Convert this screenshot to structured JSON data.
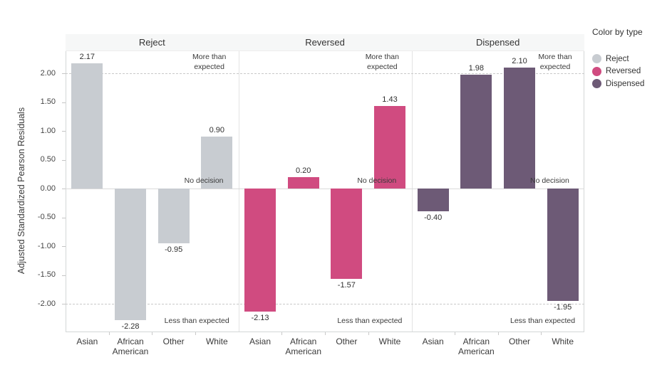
{
  "legend": {
    "title": "Color by type",
    "items": [
      {
        "label": "Reject",
        "color": "#c8ccd1"
      },
      {
        "label": "Reversed",
        "color": "#d04b80"
      },
      {
        "label": "Dispensed",
        "color": "#6d5a76"
      }
    ]
  },
  "chart_data": {
    "type": "bar",
    "title": "",
    "ylabel": "Adjusted Standardized Pearson Residuals",
    "xlabel": "",
    "categories": [
      "Asian",
      "African American",
      "Other",
      "White"
    ],
    "panels": [
      {
        "name": "Reject",
        "color": "#c8ccd1",
        "values": [
          2.17,
          -2.28,
          -0.95,
          0.9
        ]
      },
      {
        "name": "Reversed",
        "color": "#d04b80",
        "values": [
          -2.13,
          0.2,
          -1.57,
          1.43
        ]
      },
      {
        "name": "Dispensed",
        "color": "#6d5a76",
        "values": [
          -0.4,
          1.98,
          2.1,
          -1.95
        ]
      }
    ],
    "y_ticks": [
      2.0,
      1.5,
      1.0,
      0.5,
      0.0,
      -0.5,
      -1.0,
      -1.5,
      -2.0
    ],
    "ylim": [
      -2.49,
      2.39
    ],
    "reference_lines": {
      "dashed": [
        2.0,
        -2.0
      ],
      "zero": 0.0
    },
    "annotations": {
      "above": "More than expected",
      "middle": "No decision",
      "below": "Less than expected"
    },
    "value_labels": true,
    "grid": "dashed threshold lines at +2 and -2 only",
    "legend_position": "right"
  }
}
